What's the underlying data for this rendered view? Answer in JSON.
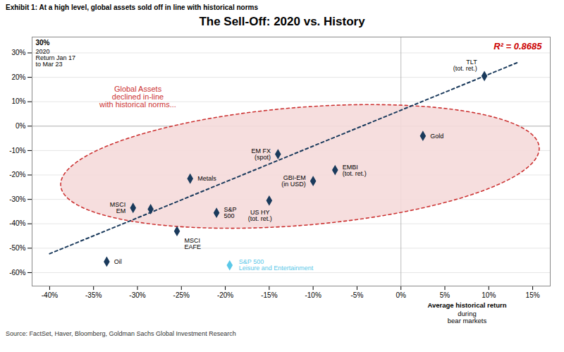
{
  "chart_data": {
    "type": "scatter",
    "title": "The Sell-Off: 2020 vs. History",
    "subtitle": "Exhibit 1: At a high level, global assets sold off in line with historical norms",
    "caption": "Source: FactSet, Haver, Bloomberg, Goldman Sachs Global Investment Research",
    "xlabel": "Average historical return\nduring\nbear markets",
    "ylabel": "30%\n2020\nReturn Jan 17\nto Mar 23",
    "xlim": [
      -0.42,
      0.17
    ],
    "ylim": [
      -0.655,
      0.365
    ],
    "xticks": [
      {
        "value": -0.4,
        "label": "-40%"
      },
      {
        "value": -0.35,
        "label": "-35%"
      },
      {
        "value": -0.3,
        "label": "-30%"
      },
      {
        "value": -0.25,
        "label": "-25%"
      },
      {
        "value": -0.2,
        "label": "-20%"
      },
      {
        "value": -0.15,
        "label": "-15%"
      },
      {
        "value": -0.1,
        "label": "-10%"
      },
      {
        "value": -0.05,
        "label": "-5%"
      },
      {
        "value": 0.0,
        "label": "0%"
      },
      {
        "value": 0.05,
        "label": "5%"
      },
      {
        "value": 0.1,
        "label": "10%"
      },
      {
        "value": 0.15,
        "label": "15%"
      }
    ],
    "yticks": [
      {
        "value": -0.6,
        "label": "-60%"
      },
      {
        "value": -0.5,
        "label": "-50%"
      },
      {
        "value": -0.4,
        "label": "-40%"
      },
      {
        "value": -0.3,
        "label": "-30%"
      },
      {
        "value": -0.2,
        "label": "-20%"
      },
      {
        "value": -0.1,
        "label": "-10%"
      },
      {
        "value": 0.0,
        "label": "0%"
      },
      {
        "value": 0.1,
        "label": "10%"
      },
      {
        "value": 0.2,
        "label": "20%"
      },
      {
        "value": 0.3,
        "label": "30%"
      }
    ],
    "grid": "y",
    "series": [
      {
        "type": "scatter",
        "marker": "diamond",
        "color": "#1a3a5c",
        "x": [
          -0.335,
          -0.305,
          -0.285,
          -0.255,
          -0.21,
          -0.24,
          -0.15,
          -0.14,
          -0.1,
          -0.075,
          0.025,
          0.095
        ],
        "y": [
          -0.555,
          -0.335,
          -0.34,
          -0.43,
          -0.355,
          -0.215,
          -0.305,
          -0.115,
          -0.225,
          -0.18,
          -0.04,
          0.205
        ],
        "labels": [
          "Oil",
          "MSCI\nEM",
          null,
          "MSCI\nEAFE",
          "S&P\n500",
          "Metals",
          "US HY\n(tot. ret.)",
          "EM FX\n(spot)",
          "GBI-EM\n(in USD)",
          "EMBI\n(tot. ret.)",
          "Gold",
          "TLT\n(tot. ret.)"
        ]
      },
      {
        "type": "scatter",
        "marker": "diamond",
        "color": "#5bc8e8",
        "x": [
          -0.195
        ],
        "y": [
          -0.57
        ],
        "labels": [
          "S&P 500\nLeisure and Entertainment"
        ]
      },
      {
        "type": "line",
        "line_style": "dashed",
        "color": "#1a3a5c",
        "x": [
          -0.4,
          0.135
        ],
        "y": [
          -0.52265,
          0.2638
        ]
      }
    ],
    "ellipse": {
      "cx": -0.115,
      "cy": -0.165,
      "width": 0.6,
      "height": 0.44,
      "angle": 38,
      "color": "#cc3333",
      "fill": "#f5dada",
      "line_style": "dashed"
    },
    "annotations": [
      {
        "text": "R² = 0.8685",
        "color": "#cc0000"
      },
      {
        "text": "Global Assets\ndeclined in-line\nwith historical norms...",
        "color": "#cc3333"
      }
    ]
  }
}
